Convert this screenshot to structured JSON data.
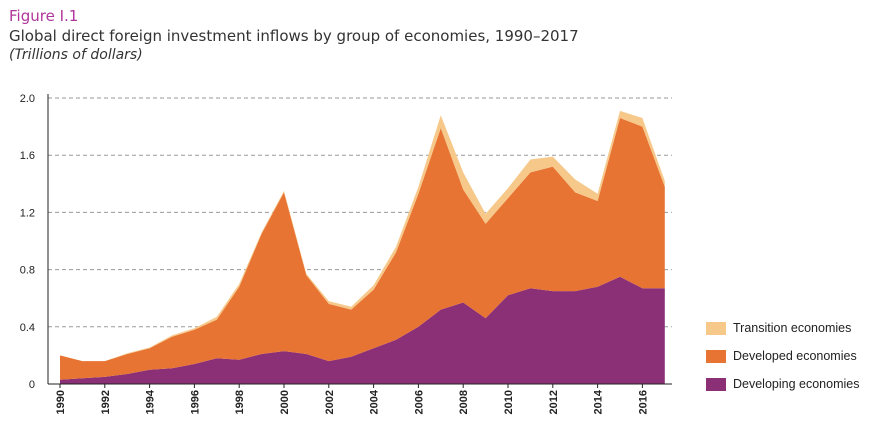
{
  "header": {
    "figure_label": "Figure I.1",
    "title": "Global direct foreign investment inflows by group of economies, 1990–2017",
    "subtitle": "(Trillions of dollars)"
  },
  "chart_data": {
    "type": "area",
    "stacked": true,
    "x": [
      1990,
      1991,
      1992,
      1993,
      1994,
      1995,
      1996,
      1997,
      1998,
      1999,
      2000,
      2001,
      2002,
      2003,
      2004,
      2005,
      2006,
      2007,
      2008,
      2009,
      2010,
      2011,
      2012,
      2013,
      2014,
      2015,
      2016,
      2017
    ],
    "x_tick_labels": [
      "1990",
      "1992",
      "1994",
      "1996",
      "1998",
      "2000",
      "2002",
      "2004",
      "2006",
      "2008",
      "2010",
      "2012",
      "2014",
      "2016"
    ],
    "ylim": [
      0,
      2.0
    ],
    "y_ticks": [
      "0",
      "0.4",
      "0.8",
      "1.2",
      "1.6",
      "2.0"
    ],
    "grid": "horizontal-dashed",
    "legend_position": "right-bottom",
    "series": [
      {
        "name": "Developing economies",
        "color": "#8b2f76",
        "values": [
          0.03,
          0.04,
          0.05,
          0.07,
          0.1,
          0.11,
          0.14,
          0.18,
          0.17,
          0.21,
          0.23,
          0.21,
          0.16,
          0.19,
          0.25,
          0.31,
          0.4,
          0.52,
          0.57,
          0.46,
          0.62,
          0.67,
          0.65,
          0.65,
          0.68,
          0.75,
          0.67,
          0.67
        ]
      },
      {
        "name": "Developed economies",
        "color": "#e87434",
        "values": [
          0.17,
          0.12,
          0.11,
          0.14,
          0.15,
          0.22,
          0.24,
          0.27,
          0.51,
          0.84,
          1.11,
          0.55,
          0.4,
          0.33,
          0.41,
          0.61,
          0.93,
          1.27,
          0.79,
          0.66,
          0.68,
          0.81,
          0.87,
          0.69,
          0.6,
          1.11,
          1.13,
          0.71
        ]
      },
      {
        "name": "Transition economies",
        "color": "#f6c98a",
        "values": [
          0.0,
          0.0,
          0.0,
          0.005,
          0.005,
          0.01,
          0.01,
          0.02,
          0.02,
          0.01,
          0.01,
          0.01,
          0.02,
          0.02,
          0.03,
          0.04,
          0.05,
          0.09,
          0.12,
          0.07,
          0.07,
          0.09,
          0.07,
          0.09,
          0.05,
          0.05,
          0.06,
          0.04
        ]
      }
    ]
  },
  "legend": [
    {
      "label": "Transition economies",
      "color": "#f6c98a"
    },
    {
      "label": "Developed economies",
      "color": "#e87434"
    },
    {
      "label": "Developing economies",
      "color": "#8b2f76"
    }
  ]
}
